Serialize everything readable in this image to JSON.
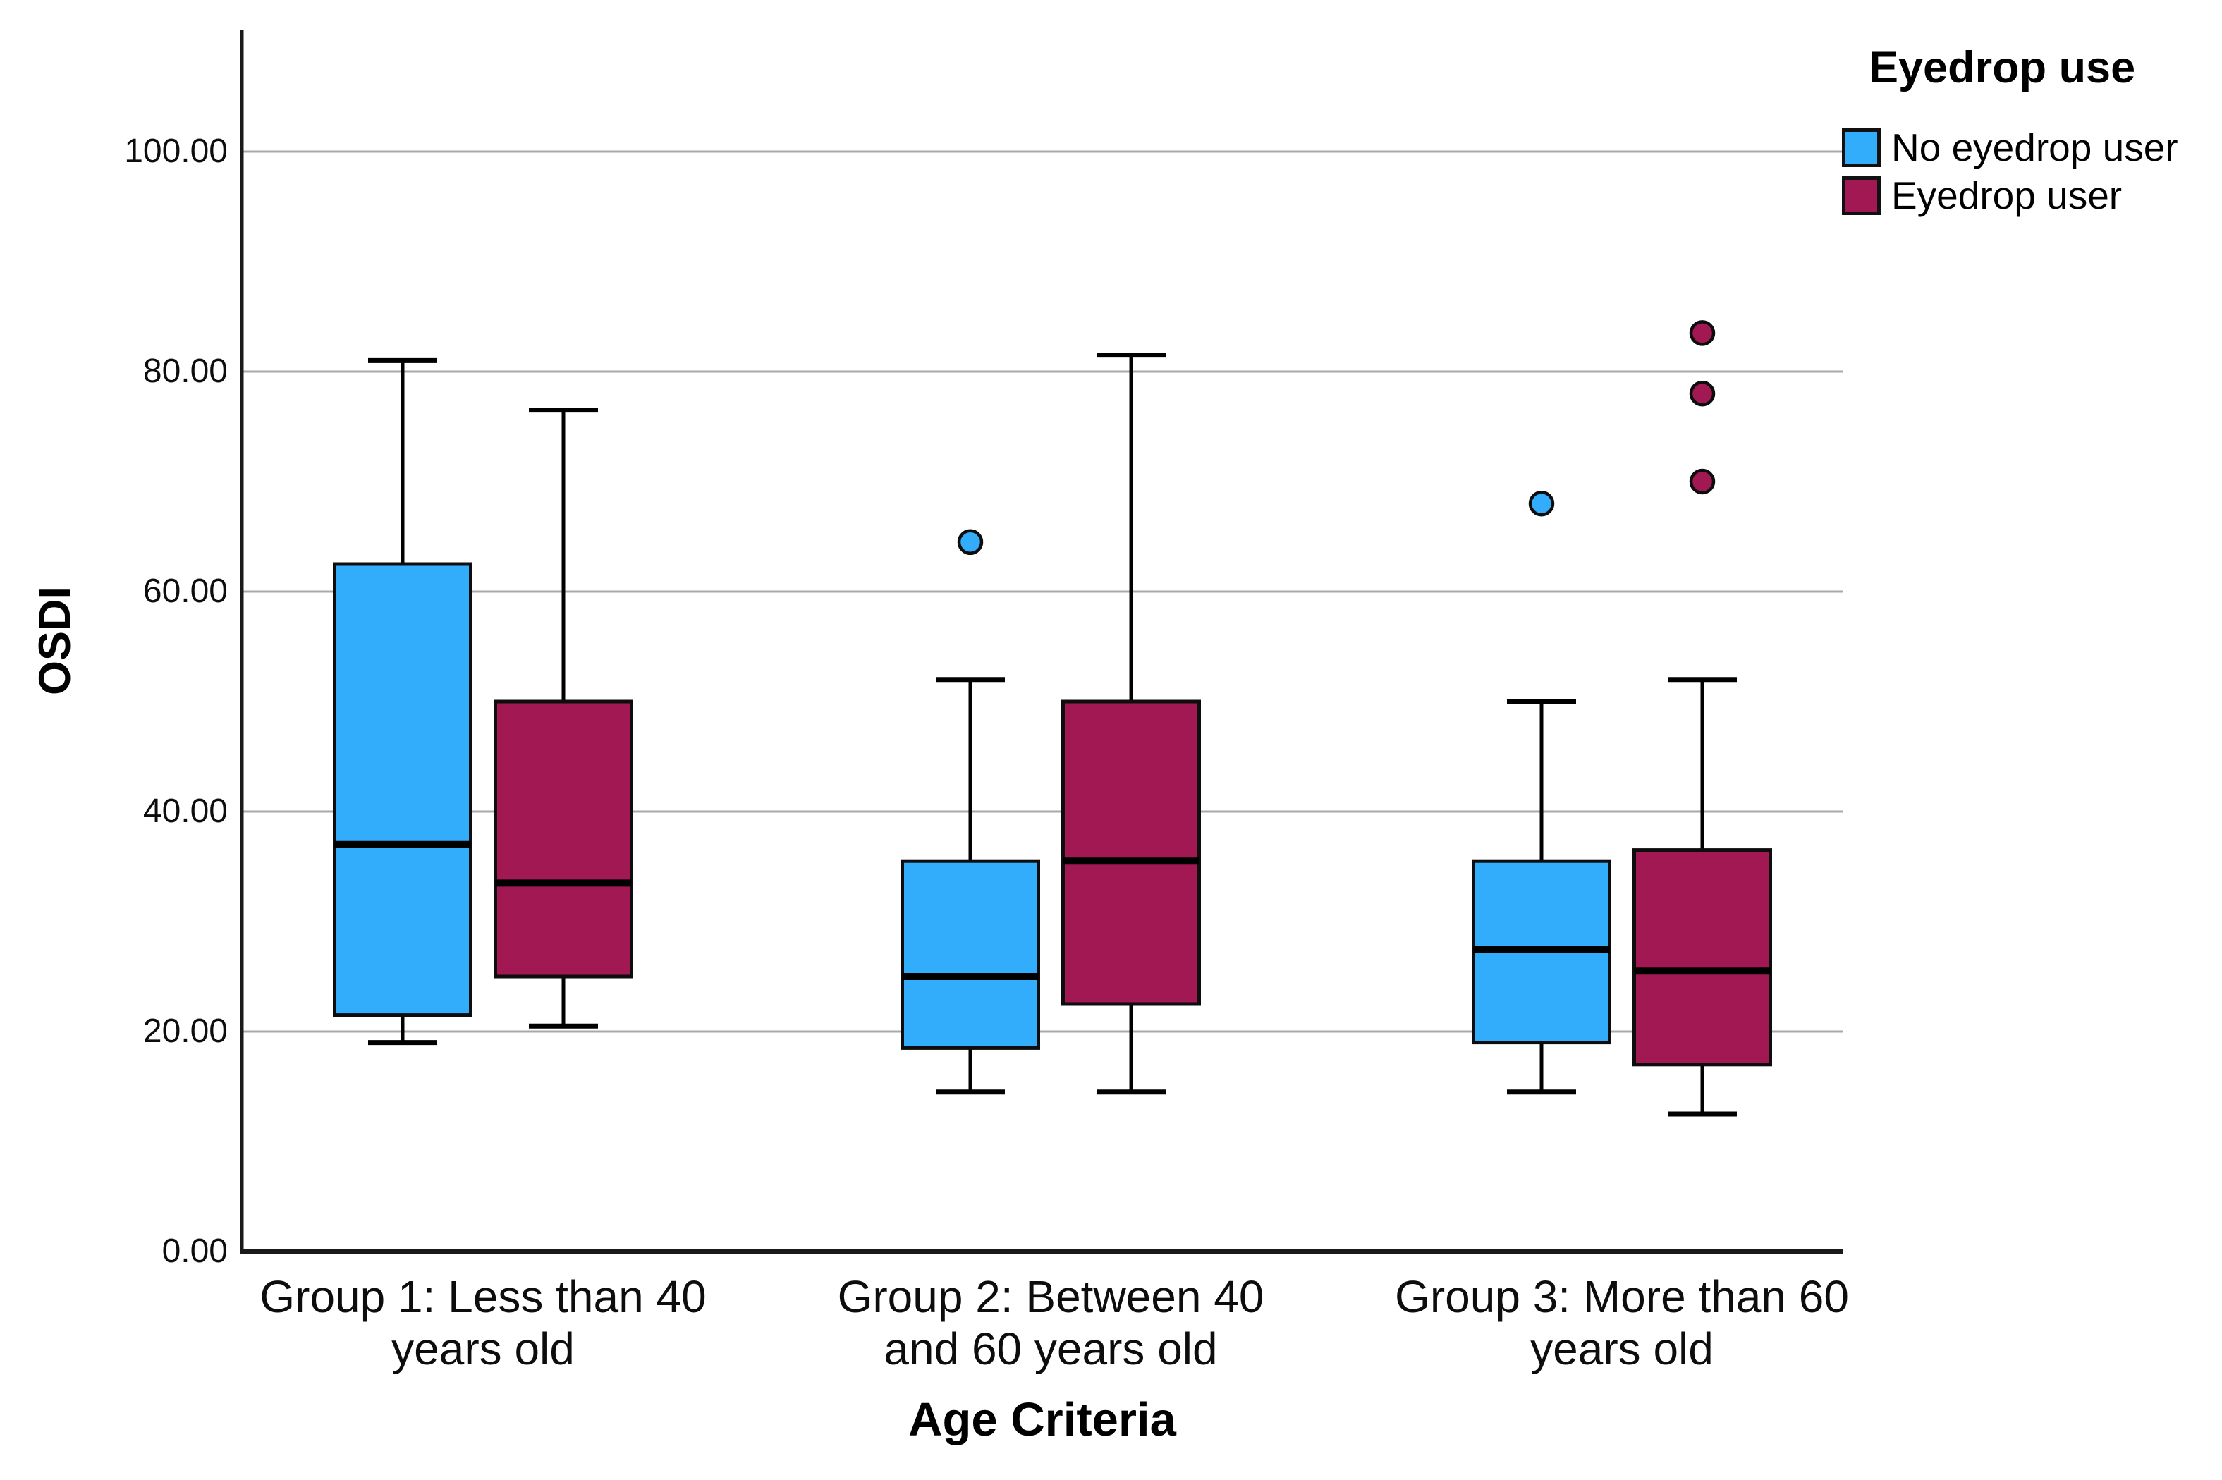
{
  "chart_data": {
    "type": "boxplot",
    "title": "",
    "xlabel": "Age Criteria",
    "ylabel": "OSDI",
    "ylim": [
      0,
      111
    ],
    "ytick_values": [
      0,
      20,
      40,
      60,
      80,
      100
    ],
    "ytick_labels": [
      "0.00",
      "20.00",
      "40.00",
      "60.00",
      "80.00",
      "100.00"
    ],
    "grid": "horizontal-gray-lines",
    "grid_color": "#a8a8a8",
    "categories": [
      [
        "Group 1: Less than 40",
        "years old"
      ],
      [
        "Group 2: Between 40",
        "and 60 years old"
      ],
      [
        "Group 3: More than 60",
        "years old"
      ]
    ],
    "series": [
      {
        "name": "No eyedrop user",
        "color": "#31adfb",
        "boxes": [
          {
            "whisker_low": 19,
            "q1": 21.5,
            "median": 37,
            "q3": 62.5,
            "whisker_high": 81,
            "outliers": []
          },
          {
            "whisker_low": 14.5,
            "q1": 18.5,
            "median": 25,
            "q3": 35.5,
            "whisker_high": 52,
            "outliers": [
              64.5
            ]
          },
          {
            "whisker_low": 14.5,
            "q1": 19,
            "median": 27.5,
            "q3": 35.5,
            "whisker_high": 50,
            "outliers": [
              68
            ]
          }
        ]
      },
      {
        "name": "Eyedrop user",
        "color": "#a21852",
        "boxes": [
          {
            "whisker_low": 20.5,
            "q1": 25,
            "median": 33.5,
            "q3": 50,
            "whisker_high": 76.5,
            "outliers": []
          },
          {
            "whisker_low": 14.5,
            "q1": 22.5,
            "median": 35.5,
            "q3": 50,
            "whisker_high": 81.5,
            "outliers": []
          },
          {
            "whisker_low": 12.5,
            "q1": 17,
            "median": 25.5,
            "q3": 36.5,
            "whisker_high": 52,
            "outliers": [
              70,
              78,
              83.5
            ]
          }
        ]
      }
    ],
    "legend": {
      "title": "Eyedrop use",
      "position": "top-right"
    }
  }
}
